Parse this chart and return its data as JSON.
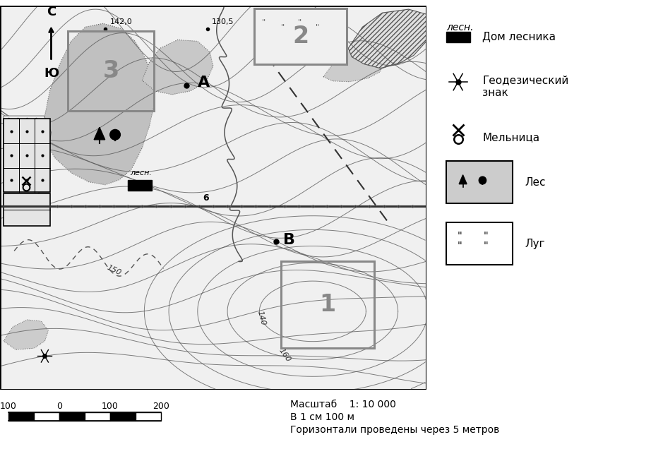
{
  "fig_width": 9.22,
  "fig_height": 6.36,
  "dpi": 100,
  "bg_color": "#ffffff",
  "scale_text1": "Масштаб    1: 10 000",
  "scale_text2": "В 1 см 100 м",
  "scale_text3": "Горизонтали проведены через 5 метров",
  "contour_color": "#555555",
  "gray_forest": "#c0c0c0",
  "gray_light": "#d8d8d8"
}
